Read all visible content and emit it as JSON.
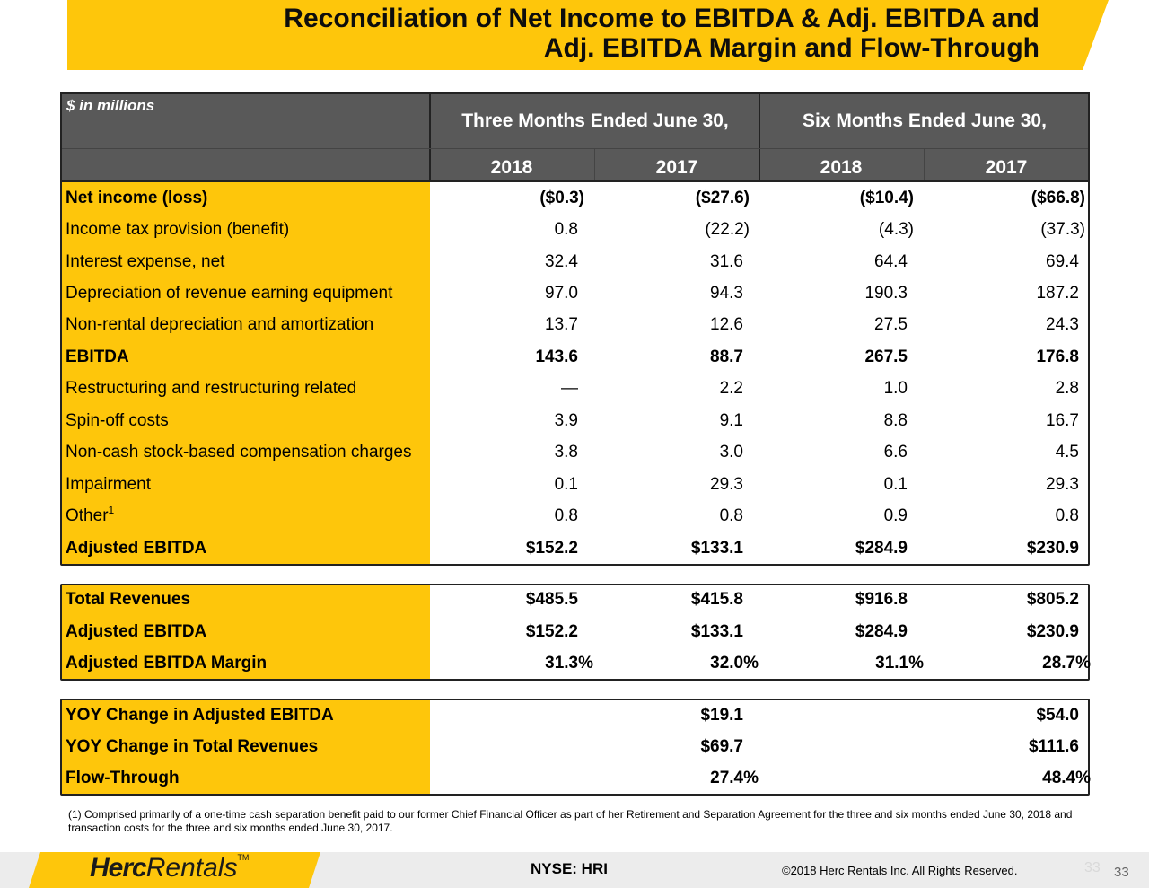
{
  "title": {
    "line1": "Reconciliation of Net Income to EBITDA & Adj. EBITDA and",
    "line2": "Adj. EBITDA Margin and Flow-Through"
  },
  "table_header": {
    "unit_label": "$ in millions",
    "period_three": "Three Months Ended June 30,",
    "period_six": "Six Months Ended June 30,",
    "years": [
      "2018",
      "2017",
      "2018",
      "2017"
    ]
  },
  "reconciliation_rows": [
    {
      "label": "Net income (loss)",
      "values": [
        "($0.3)",
        "($27.6)",
        "($10.4)",
        "($66.8)"
      ],
      "bold": true
    },
    {
      "label": "Income tax provision (benefit)",
      "values": [
        "0.8",
        "(22.2)",
        "(4.3)",
        "(37.3)"
      ]
    },
    {
      "label": "Interest expense, net",
      "values": [
        "32.4",
        "31.6",
        "64.4",
        "69.4"
      ]
    },
    {
      "label": "Depreciation of revenue earning equipment",
      "values": [
        "97.0",
        "94.3",
        "190.3",
        "187.2"
      ]
    },
    {
      "label": "Non-rental depreciation and amortization",
      "values": [
        "13.7",
        "12.6",
        "27.5",
        "24.3"
      ]
    },
    {
      "label": "EBITDA",
      "values": [
        "143.6",
        "88.7",
        "267.5",
        "176.8"
      ],
      "bold": true
    },
    {
      "label": "Restructuring and restructuring related",
      "values": [
        "—",
        "2.2",
        "1.0",
        "2.8"
      ]
    },
    {
      "label": "Spin-off costs",
      "values": [
        "3.9",
        "9.1",
        "8.8",
        "16.7"
      ]
    },
    {
      "label": "Non-cash stock-based compensation charges",
      "values": [
        "3.8",
        "3.0",
        "6.6",
        "4.5"
      ]
    },
    {
      "label": "Impairment",
      "values": [
        "0.1",
        "29.3",
        "0.1",
        "29.3"
      ]
    },
    {
      "label": "Other",
      "sup": "1",
      "values": [
        "0.8",
        "0.8",
        "0.9",
        "0.8"
      ]
    },
    {
      "label": "Adjusted EBITDA",
      "values": [
        "$152.2",
        "$133.1",
        "$284.9",
        "$230.9"
      ],
      "bold": true
    }
  ],
  "margin_rows": [
    {
      "label": "Total Revenues",
      "values": [
        "$485.5",
        "$415.8",
        "$916.8",
        "$805.2"
      ]
    },
    {
      "label": "Adjusted EBITDA",
      "values": [
        "$152.2",
        "$133.1",
        "$284.9",
        "$230.9"
      ]
    },
    {
      "label": "Adjusted EBITDA Margin",
      "values": [
        "31.3%",
        "32.0%",
        "31.1%",
        "28.7%"
      ]
    }
  ],
  "flow_rows": [
    {
      "label": "YOY Change in Adjusted EBITDA",
      "values": [
        "$19.1",
        "$54.0"
      ]
    },
    {
      "label": "YOY Change in Total Revenues",
      "values": [
        "$69.7",
        "$111.6"
      ]
    },
    {
      "label": "Flow-Through",
      "values": [
        "27.4%",
        "48.4%"
      ]
    }
  ],
  "footnote": "(1) Comprised primarily of a one-time cash separation benefit paid to our former Chief Financial Officer as part of her Retirement and Separation Agreement for the three and six months ended June 30, 2018 and transaction costs for the three and six months ended June 30, 2017.",
  "footer": {
    "logo_herc": "Herc",
    "logo_rentals": "Rentals",
    "logo_tm": "TM",
    "ticker": "NYSE: HRI",
    "copyright": "©2018 Herc Rentals Inc.  All Rights Reserved.",
    "ghost_page": "33",
    "page_number": "33"
  },
  "colors": {
    "brand_yellow": "#FEC60B",
    "header_gray": "#595959"
  }
}
